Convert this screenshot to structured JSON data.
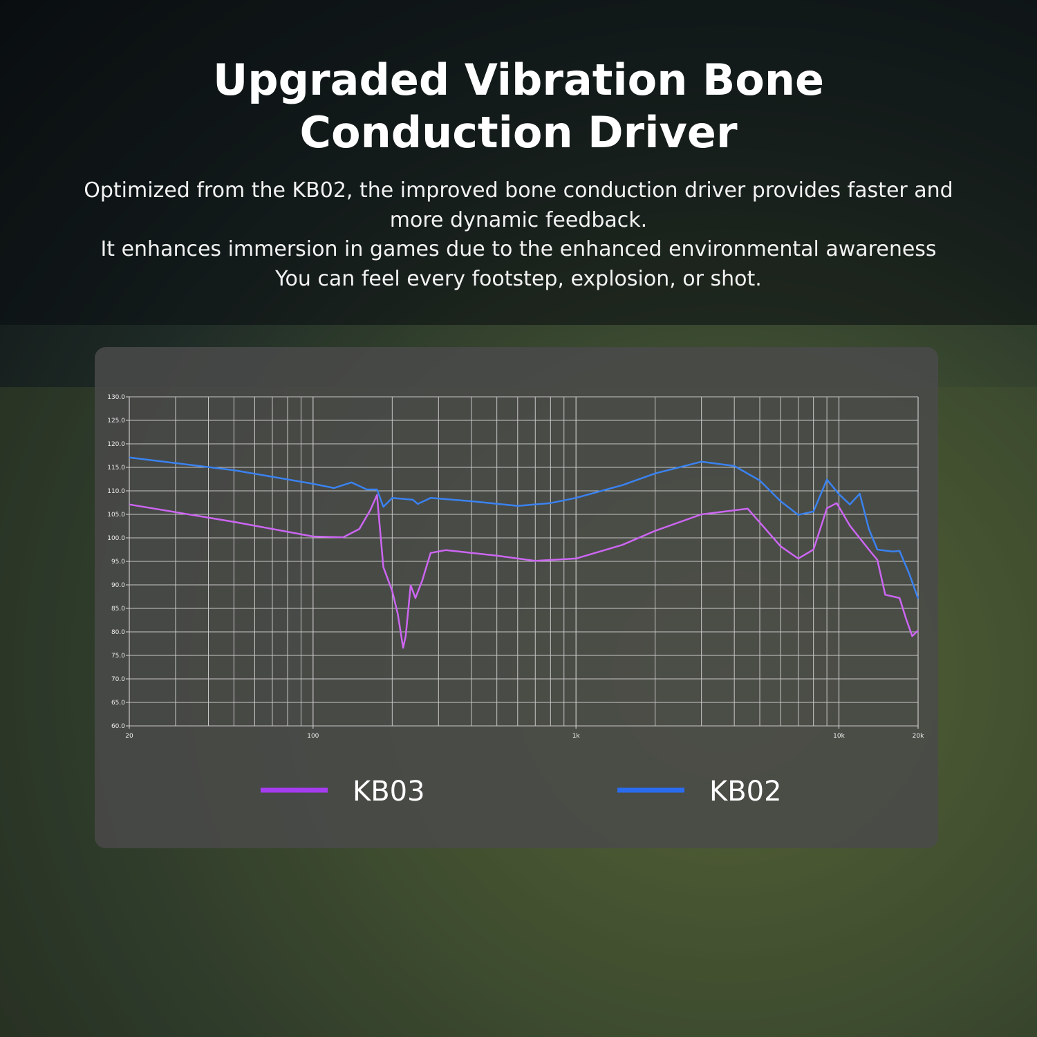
{
  "header": {
    "title": "Upgraded Vibration Bone Conduction Driver",
    "lines": [
      "Optimized from the KB02, the improved bone conduction driver provides faster and",
      "more dynamic feedback.",
      "It enhances immersion in games due to the enhanced environmental awareness",
      "You can feel every footstep, explosion, or shot."
    ]
  },
  "chart_data": {
    "type": "line",
    "xscale": "log",
    "grid": true,
    "xlim": [
      20,
      20000
    ],
    "ylim": [
      60,
      130
    ],
    "xticks": [
      20,
      100,
      {
        "value": 1000,
        "label": "1k"
      },
      {
        "value": 10000,
        "label": "10k"
      },
      {
        "value": 20000,
        "label": "20k"
      }
    ],
    "xgrid": [
      30,
      40,
      50,
      60,
      70,
      80,
      90,
      200,
      300,
      400,
      500,
      600,
      700,
      800,
      900,
      2000,
      3000,
      4000,
      5000,
      6000,
      7000,
      8000,
      9000
    ],
    "yticks": [
      {
        "value": 60,
        "label": "60.0"
      },
      {
        "value": 65,
        "label": "65.0"
      },
      {
        "value": 70,
        "label": "70.0"
      },
      {
        "value": 75,
        "label": "75.0"
      },
      {
        "value": 80,
        "label": "80.0"
      },
      {
        "value": 85,
        "label": "85.0"
      },
      {
        "value": 90,
        "label": "90.0"
      },
      {
        "value": 95,
        "label": "95.0"
      },
      {
        "value": 100,
        "label": "100.0"
      },
      {
        "value": 105,
        "label": "105.0"
      },
      {
        "value": 110,
        "label": "110.0"
      },
      {
        "value": 115,
        "label": "115.0"
      },
      {
        "value": 120,
        "label": "120.0"
      },
      {
        "value": 125,
        "label": "125.0"
      },
      {
        "value": 130,
        "label": "130.0"
      }
    ],
    "series": [
      {
        "name": "KB03",
        "color": "#cc66f2",
        "legend_color": "#a63cf0",
        "x": [
          20,
          50,
          100,
          130,
          150,
          165,
          175,
          185,
          200,
          210,
          220,
          225,
          235,
          245,
          260,
          280,
          320,
          500,
          700,
          1000,
          1500,
          2000,
          3000,
          4500,
          6000,
          7000,
          8000,
          9000,
          9800,
          11000,
          13000,
          14000,
          15000,
          17000,
          18000,
          19000,
          20000
        ],
        "values": [
          107.1,
          103.4,
          100.3,
          100.1,
          101.9,
          105.9,
          109.1,
          93.8,
          88.7,
          83.8,
          76.6,
          79.1,
          89.9,
          87.2,
          90.9,
          96.8,
          97.4,
          96.2,
          95.1,
          95.6,
          98.5,
          101.5,
          105,
          106.2,
          98.2,
          95.6,
          97.5,
          106.3,
          107.4,
          102.6,
          97.5,
          95.3,
          87.9,
          87.2,
          82.8,
          79.1,
          80.3
        ]
      },
      {
        "name": "KB02",
        "color": "#3a82f0",
        "legend_color": "#2a6cf0",
        "x": [
          20,
          50,
          100,
          120,
          140,
          160,
          175,
          185,
          200,
          240,
          250,
          280,
          400,
          600,
          800,
          1000,
          1500,
          2000,
          3000,
          4000,
          5000,
          6000,
          7000,
          8000,
          9000,
          10000,
          11000,
          12000,
          13000,
          14000,
          16000,
          17000,
          18500,
          20000
        ],
        "values": [
          117.1,
          114.4,
          111.5,
          110.6,
          111.8,
          110.3,
          110.3,
          106.6,
          108.5,
          108.1,
          107.2,
          108.5,
          107.8,
          106.8,
          107.4,
          108.5,
          111.2,
          113.7,
          116.2,
          115.3,
          112.2,
          107.8,
          104.9,
          105.6,
          112.4,
          109.3,
          107.1,
          109.4,
          101.9,
          97.5,
          97.1,
          97.2,
          92.4,
          87.1
        ]
      }
    ]
  }
}
